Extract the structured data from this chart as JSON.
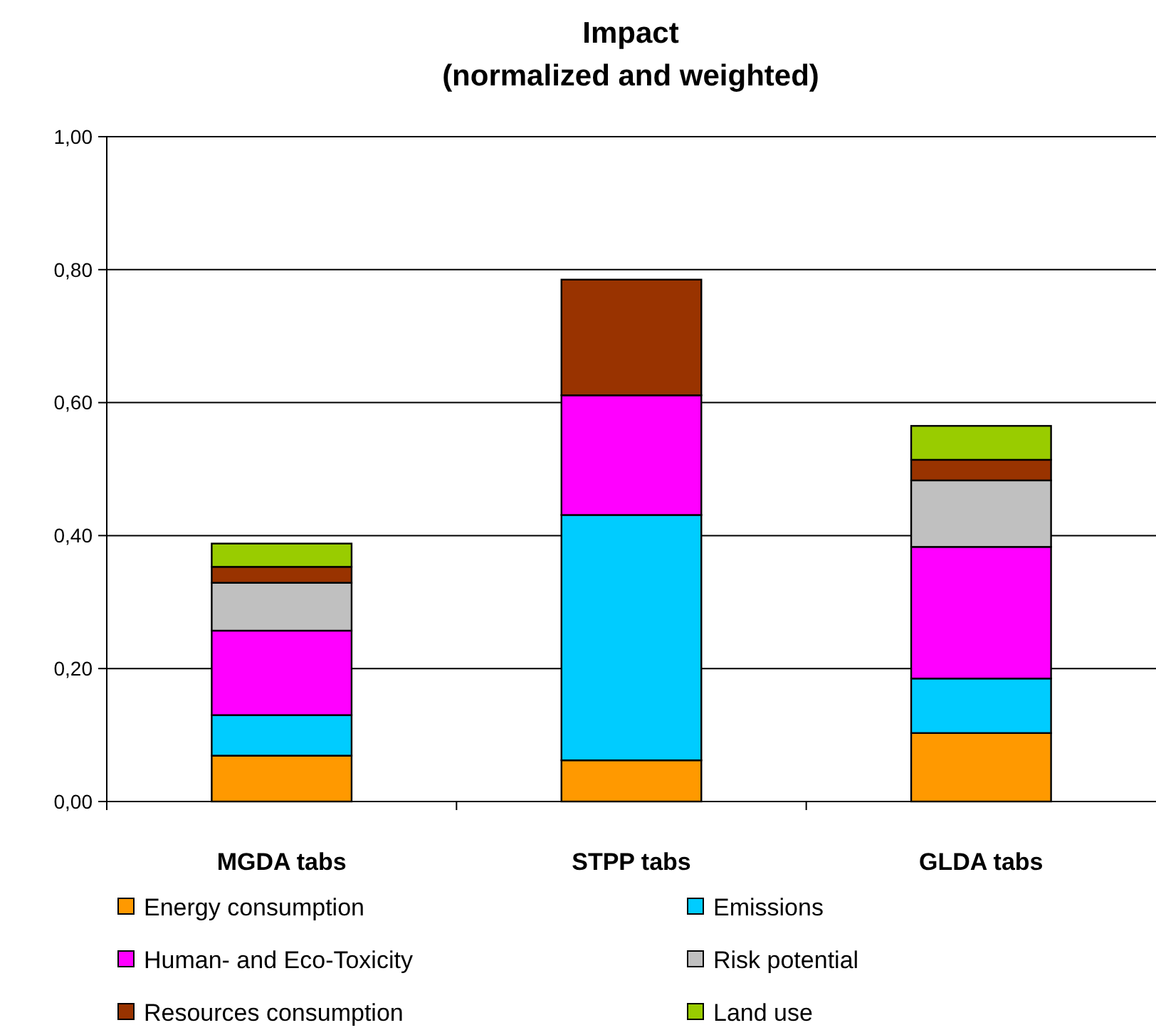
{
  "chart_data": {
    "type": "bar",
    "title": "Impact",
    "subtitle": "(normalized and weighted)",
    "categories": [
      "MGDA tabs",
      "STPP tabs",
      "GLDA tabs"
    ],
    "stacked": true,
    "series": [
      {
        "name": "Energy consumption",
        "color": "#ff9900",
        "values": [
          0.069,
          0.062,
          0.103
        ]
      },
      {
        "name": "Emissions",
        "color": "#00ccff",
        "values": [
          0.061,
          0.369,
          0.082
        ]
      },
      {
        "name": "Human- and Eco-Toxicity",
        "color": "#ff00ff",
        "values": [
          0.127,
          0.18,
          0.198
        ]
      },
      {
        "name": "Risk potential",
        "color": "#c0c0c0",
        "values": [
          0.072,
          null,
          0.1
        ]
      },
      {
        "name": "Resources consumption",
        "color": "#993300",
        "values": [
          0.024,
          0.174,
          0.031
        ]
      },
      {
        "name": "Land use",
        "color": "#99cc00",
        "values": [
          0.035,
          0,
          0.051
        ]
      }
    ],
    "ylim": [
      0,
      1
    ],
    "yticks": [
      {
        "value": 0,
        "label": "0,00"
      },
      {
        "value": 0.2,
        "label": "0,20"
      },
      {
        "value": 0.4,
        "label": "0,40"
      },
      {
        "value": 0.6,
        "label": "0,60"
      },
      {
        "value": 0.8,
        "label": "0,80"
      },
      {
        "value": 1,
        "label": "1,00"
      }
    ],
    "grid": "y",
    "legend": "bottom"
  }
}
